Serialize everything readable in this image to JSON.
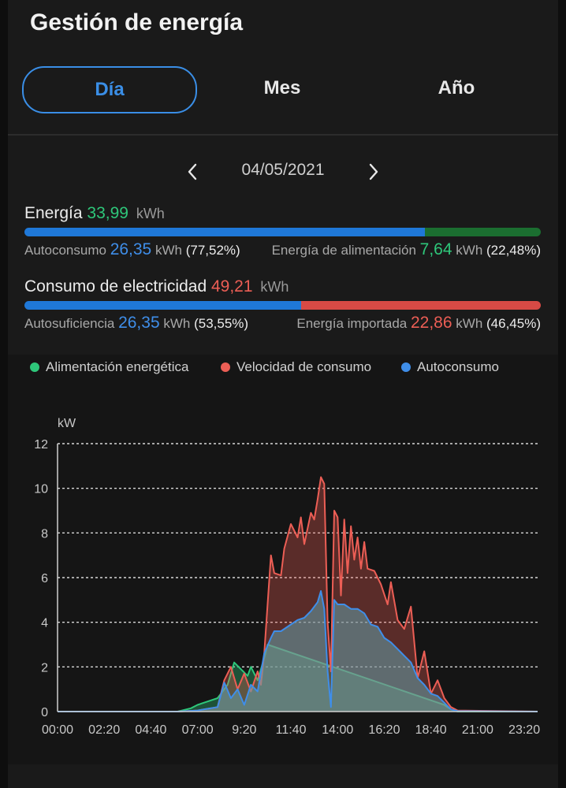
{
  "header": {
    "title": "Gestión de energía"
  },
  "tabs": [
    {
      "label": "Día",
      "active": true
    },
    {
      "label": "Mes",
      "active": false
    },
    {
      "label": "Año",
      "active": false
    }
  ],
  "date": {
    "value": "04/05/2021"
  },
  "energy": {
    "label": "Energía",
    "value": "33,99",
    "unit": "kWh",
    "self_label": "Autoconsumo",
    "self_value": "26,35",
    "self_unit": "kWh",
    "self_pct": "(77,52%)",
    "feed_label": "Energía de alimentación",
    "feed_value": "7,64",
    "feed_unit": "kWh",
    "feed_pct": "(22,48%)",
    "self_fraction": 0.7752
  },
  "consumption": {
    "label": "Consumo de electricidad",
    "value": "49,21",
    "unit": "kWh",
    "self_label": "Autosuficiencia",
    "self_value": "26,35",
    "self_unit": "kWh",
    "self_pct": "(53,55%)",
    "import_label": "Energía importada",
    "import_value": "22,86",
    "import_unit": "kWh",
    "import_pct": "(46,45%)",
    "self_fraction": 0.5355
  },
  "colors": {
    "accent": "#3a8ee6",
    "green": "#2ec77a",
    "red": "#ec5e55",
    "blue": "#3f8ee9",
    "dark_green": "#1b6e30"
  },
  "chart_data": {
    "type": "area",
    "ylabel": "kW",
    "ylim": [
      0,
      12
    ],
    "yticks": [
      0,
      2,
      4,
      6,
      8,
      10,
      12
    ],
    "xlim": [
      "00:00",
      "24:00"
    ],
    "xticks": [
      "00:00",
      "02:20",
      "04:40",
      "07:00",
      "9:20",
      "11:40",
      "14:00",
      "16:20",
      "18:40",
      "21:00",
      "23:20"
    ],
    "grid": true,
    "legend_position": "top",
    "series": [
      {
        "name": "Alimentación energética",
        "color": "#2ec77a",
        "points": [
          [
            "00:00",
            0
          ],
          [
            "06:00",
            0
          ],
          [
            "06:40",
            0.15
          ],
          [
            "07:00",
            0.3
          ],
          [
            "07:40",
            0.5
          ],
          [
            "08:00",
            0.6
          ],
          [
            "08:30",
            1.2
          ],
          [
            "08:50",
            2.2
          ],
          [
            "09:10",
            1.9
          ],
          [
            "09:30",
            1.6
          ],
          [
            "09:40",
            2.0
          ],
          [
            "10:00",
            1.4
          ],
          [
            "10:20",
            2.4
          ],
          [
            "10:30",
            3.0
          ],
          [
            "19:20",
            0.3
          ],
          [
            "19:40",
            0.1
          ],
          [
            "20:00",
            0
          ],
          [
            "24:00",
            0
          ]
        ]
      },
      {
        "name": "Velocidad de consumo",
        "color": "#ec5e55",
        "points": [
          [
            "00:00",
            0
          ],
          [
            "06:00",
            0
          ],
          [
            "07:00",
            0.05
          ],
          [
            "08:00",
            0.2
          ],
          [
            "08:20",
            1.4
          ],
          [
            "08:40",
            2.0
          ],
          [
            "09:00",
            1.0
          ],
          [
            "09:20",
            1.7
          ],
          [
            "09:40",
            0.9
          ],
          [
            "10:00",
            1.8
          ],
          [
            "10:10",
            1.2
          ],
          [
            "10:20",
            2.6
          ],
          [
            "10:40",
            7.0
          ],
          [
            "10:50",
            6.2
          ],
          [
            "11:10",
            6.1
          ],
          [
            "11:20",
            7.3
          ],
          [
            "11:40",
            8.4
          ],
          [
            "12:00",
            7.8
          ],
          [
            "12:10",
            8.7
          ],
          [
            "12:20",
            7.5
          ],
          [
            "12:40",
            8.9
          ],
          [
            "12:50",
            8.6
          ],
          [
            "13:00",
            9.5
          ],
          [
            "13:10",
            10.5
          ],
          [
            "13:20",
            10.2
          ],
          [
            "13:30",
            4.0
          ],
          [
            "13:40",
            1.8
          ],
          [
            "13:50",
            9.0
          ],
          [
            "14:00",
            8.7
          ],
          [
            "14:10",
            5.2
          ],
          [
            "14:20",
            8.6
          ],
          [
            "14:30",
            6.2
          ],
          [
            "14:40",
            8.3
          ],
          [
            "14:50",
            6.8
          ],
          [
            "15:00",
            7.8
          ],
          [
            "15:10",
            6.4
          ],
          [
            "15:20",
            7.6
          ],
          [
            "15:30",
            6.4
          ],
          [
            "15:50",
            6.3
          ],
          [
            "16:10",
            5.7
          ],
          [
            "16:30",
            4.8
          ],
          [
            "16:40",
            5.8
          ],
          [
            "17:00",
            4.1
          ],
          [
            "17:20",
            3.7
          ],
          [
            "17:40",
            4.7
          ],
          [
            "18:00",
            1.5
          ],
          [
            "18:20",
            2.7
          ],
          [
            "18:40",
            0.8
          ],
          [
            "19:00",
            1.4
          ],
          [
            "19:20",
            0.6
          ],
          [
            "19:40",
            0.2
          ],
          [
            "20:00",
            0.05
          ],
          [
            "24:00",
            0
          ]
        ]
      },
      {
        "name": "Autoconsumo",
        "color": "#3f8ee9",
        "points": [
          [
            "00:00",
            0
          ],
          [
            "06:00",
            0
          ],
          [
            "07:00",
            0.05
          ],
          [
            "08:00",
            0.2
          ],
          [
            "08:20",
            1.3
          ],
          [
            "08:40",
            0.6
          ],
          [
            "09:00",
            1.0
          ],
          [
            "09:20",
            0.3
          ],
          [
            "09:40",
            1.2
          ],
          [
            "10:00",
            0.9
          ],
          [
            "10:20",
            2.6
          ],
          [
            "10:40",
            3.3
          ],
          [
            "10:50",
            3.6
          ],
          [
            "11:10",
            3.6
          ],
          [
            "11:40",
            3.9
          ],
          [
            "12:00",
            4.1
          ],
          [
            "12:20",
            4.2
          ],
          [
            "12:40",
            4.5
          ],
          [
            "13:00",
            4.9
          ],
          [
            "13:10",
            5.4
          ],
          [
            "13:20",
            4.6
          ],
          [
            "13:30",
            1.8
          ],
          [
            "13:40",
            0.2
          ],
          [
            "13:50",
            5.0
          ],
          [
            "14:00",
            4.8
          ],
          [
            "14:20",
            4.8
          ],
          [
            "14:40",
            4.6
          ],
          [
            "15:00",
            4.6
          ],
          [
            "15:20",
            4.4
          ],
          [
            "15:40",
            3.9
          ],
          [
            "16:00",
            3.8
          ],
          [
            "16:20",
            3.3
          ],
          [
            "16:40",
            3.1
          ],
          [
            "17:00",
            2.8
          ],
          [
            "17:20",
            2.5
          ],
          [
            "17:40",
            2.2
          ],
          [
            "18:00",
            1.5
          ],
          [
            "18:20",
            1.2
          ],
          [
            "18:40",
            0.8
          ],
          [
            "19:00",
            0.7
          ],
          [
            "19:20",
            0.4
          ],
          [
            "19:40",
            0.1
          ],
          [
            "20:00",
            0.02
          ],
          [
            "24:00",
            0
          ]
        ]
      }
    ]
  }
}
